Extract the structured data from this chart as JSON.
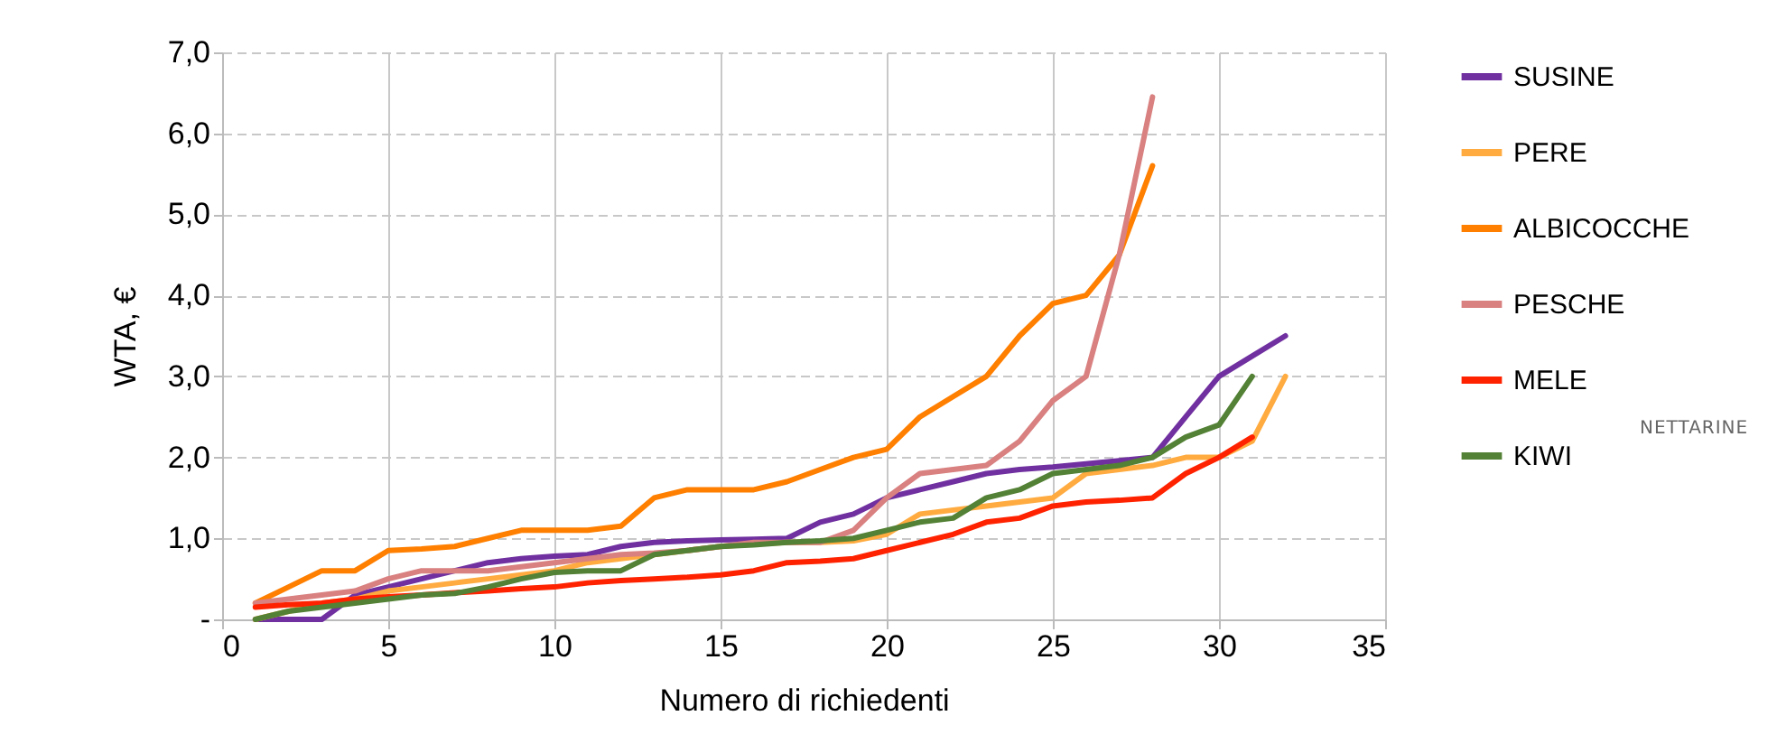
{
  "chart_data": {
    "type": "line",
    "xlabel": "Numero di richiedenti",
    "ylabel": "WTA, €",
    "x": [
      1,
      2,
      3,
      4,
      5,
      6,
      7,
      8,
      9,
      10,
      11,
      12,
      13,
      14,
      15,
      16,
      17,
      18,
      19,
      20,
      21,
      22,
      23,
      24,
      25,
      26,
      27,
      28,
      29,
      30,
      31,
      32
    ],
    "series": [
      {
        "name": "SUSINE",
        "color": "#7030a0",
        "values": [
          0,
          0,
          0,
          0.3,
          0.4,
          0.5,
          0.6,
          0.7,
          0.75,
          0.78,
          0.8,
          0.9,
          0.95,
          0.97,
          0.98,
          0.99,
          1.0,
          1.2,
          1.3,
          1.5,
          1.6,
          1.7,
          1.8,
          1.85,
          1.88,
          1.92,
          1.96,
          2.0,
          2.5,
          3.0,
          3.25,
          3.5
        ]
      },
      {
        "name": "PERE",
        "color": "#ffab40",
        "values": [
          0,
          0.1,
          0.2,
          0.25,
          0.35,
          0.4,
          0.45,
          0.5,
          0.55,
          0.6,
          0.7,
          0.75,
          0.8,
          0.85,
          0.9,
          0.93,
          0.95,
          0.95,
          0.97,
          1.05,
          1.3,
          1.35,
          1.4,
          1.45,
          1.5,
          1.8,
          1.85,
          1.9,
          2.0,
          2.0,
          2.2,
          3.0
        ]
      },
      {
        "name": "ALBICOCCHE",
        "color": "#ff7f00",
        "values": [
          0.2,
          0.4,
          0.6,
          0.6,
          0.85,
          0.87,
          0.9,
          1.0,
          1.1,
          1.1,
          1.1,
          1.15,
          1.5,
          1.6,
          1.6,
          1.6,
          1.7,
          1.85,
          2.0,
          2.1,
          2.5,
          2.75,
          3.0,
          3.5,
          3.9,
          4.0,
          4.5,
          5.6,
          null,
          null,
          null,
          null
        ]
      },
      {
        "name": "PESCHE",
        "color": "#d98080",
        "values": [
          0.2,
          0.25,
          0.3,
          0.35,
          0.5,
          0.6,
          0.6,
          0.6,
          0.65,
          0.7,
          0.75,
          0.8,
          0.82,
          0.85,
          0.9,
          0.95,
          0.95,
          0.95,
          1.1,
          1.5,
          1.8,
          1.85,
          1.9,
          2.2,
          2.7,
          3.0,
          4.5,
          6.45,
          null,
          null,
          null,
          null
        ]
      },
      {
        "name": "MELE",
        "color": "#ff2200",
        "values": [
          0.15,
          0.18,
          0.2,
          0.25,
          0.28,
          0.3,
          0.33,
          0.35,
          0.38,
          0.4,
          0.45,
          0.48,
          0.5,
          0.52,
          0.55,
          0.6,
          0.7,
          0.72,
          0.75,
          0.85,
          0.95,
          1.05,
          1.2,
          1.25,
          1.4,
          1.45,
          1.47,
          1.5,
          1.8,
          2.0,
          2.25,
          null
        ]
      },
      {
        "name": "KIWI",
        "color": "#538135",
        "values": [
          0,
          0.1,
          0.15,
          0.2,
          0.25,
          0.3,
          0.32,
          0.4,
          0.5,
          0.58,
          0.6,
          0.6,
          0.8,
          0.85,
          0.9,
          0.92,
          0.95,
          0.97,
          1.0,
          1.1,
          1.2,
          1.25,
          1.5,
          1.6,
          1.8,
          1.85,
          1.9,
          2.0,
          2.25,
          2.4,
          3.0,
          null
        ]
      }
    ],
    "xlim": [
      0,
      35
    ],
    "xticks": [
      0,
      5,
      10,
      15,
      20,
      25,
      30,
      35
    ],
    "ylim": [
      0,
      7
    ],
    "yticks": [
      {
        "value": 0,
        "label": "-"
      },
      {
        "value": 1,
        "label": "1,0"
      },
      {
        "value": 2,
        "label": "2,0"
      },
      {
        "value": 3,
        "label": "3,0"
      },
      {
        "value": 4,
        "label": "4,0"
      },
      {
        "value": 5,
        "label": "5,0"
      },
      {
        "value": 6,
        "label": "6,0"
      },
      {
        "value": 7,
        "label": "7,0"
      }
    ],
    "grid": true,
    "legend": "right",
    "marker": "none",
    "line_style": "solid",
    "annotations": [
      "NETTARINE"
    ]
  }
}
